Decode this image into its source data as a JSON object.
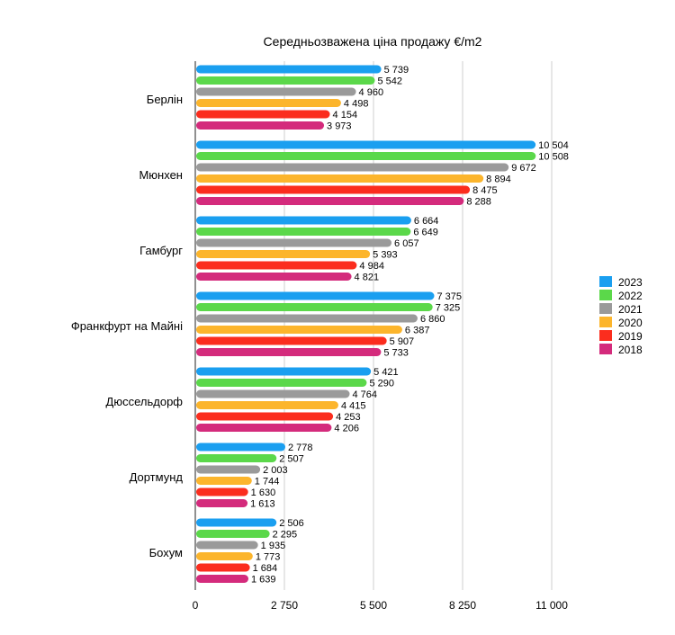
{
  "chart_data": {
    "type": "bar",
    "orientation": "horizontal",
    "title": "Середньозважена ціна продажу €/m2",
    "xlabel": "",
    "ylabel": "",
    "xlim": [
      0,
      11000
    ],
    "xticks": [
      0,
      2750,
      5500,
      8250,
      11000
    ],
    "xtick_labels": [
      "0",
      "2 750",
      "5 500",
      "8 250",
      "11 000"
    ],
    "grid": true,
    "legend_position": "right",
    "categories": [
      "Берлін",
      "Мюнхен",
      "Гамбург",
      "Франкфурт на Майні",
      "Дюссельдорф",
      "Дортмунд",
      "Бохум"
    ],
    "series": [
      {
        "name": "2023",
        "color": "#1a9ff0",
        "values": [
          5739,
          10504,
          6664,
          7375,
          5421,
          2778,
          2506
        ],
        "labels": [
          "5 739",
          "10 504",
          "6 664",
          "7 375",
          "5 421",
          "2 778",
          "2 506"
        ]
      },
      {
        "name": "2022",
        "color": "#5bd84a",
        "values": [
          5542,
          10508,
          6649,
          7325,
          5290,
          2507,
          2295
        ],
        "labels": [
          "5 542",
          "10 508",
          "6 649",
          "7 325",
          "5 290",
          "2 507",
          "2 295"
        ]
      },
      {
        "name": "2021",
        "color": "#9a9a9a",
        "values": [
          4960,
          9672,
          6057,
          6860,
          4764,
          2003,
          1935
        ],
        "labels": [
          "4 960",
          "9 672",
          "6 057",
          "6 860",
          "4 764",
          "2 003",
          "1 935"
        ]
      },
      {
        "name": "2020",
        "color": "#fcb52c",
        "values": [
          4498,
          8894,
          5393,
          6387,
          4415,
          1744,
          1773
        ],
        "labels": [
          "4 498",
          "8 894",
          "5 393",
          "6 387",
          "4 415",
          "1 744",
          "1 773"
        ]
      },
      {
        "name": "2019",
        "color": "#fb2d1e",
        "values": [
          4154,
          8475,
          4984,
          5907,
          4253,
          1630,
          1684
        ],
        "labels": [
          "4 154",
          "8 475",
          "4 984",
          "5 907",
          "4 253",
          "1 630",
          "1 684"
        ]
      },
      {
        "name": "2018",
        "color": "#d42b7c",
        "values": [
          3973,
          8288,
          4821,
          5733,
          4206,
          1613,
          1639
        ],
        "labels": [
          "3 973",
          "8 288",
          "4 821",
          "5 733",
          "4 206",
          "1 613",
          "1 639"
        ]
      }
    ]
  }
}
